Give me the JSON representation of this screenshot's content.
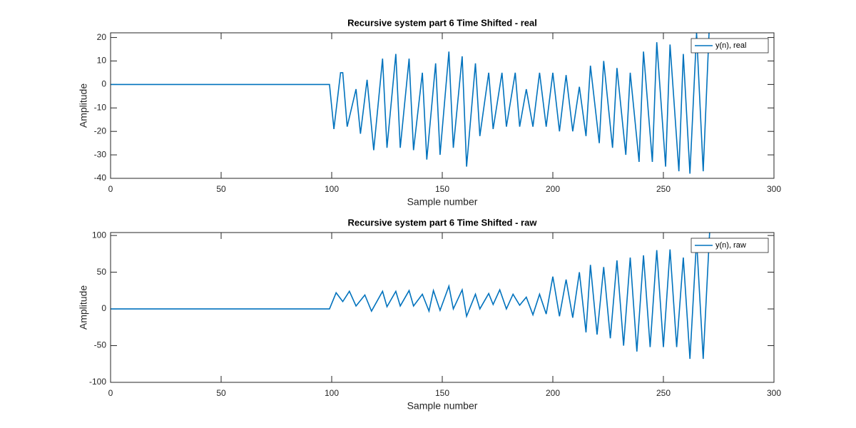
{
  "chart_data": [
    {
      "type": "line",
      "title": "Recursive system part 6 Time Shifted - real",
      "xlabel": "Sample number",
      "ylabel": "Amplitude",
      "x": [
        0,
        99,
        101,
        104,
        105,
        107,
        111,
        113,
        116,
        119,
        123,
        125,
        129,
        131,
        135,
        137,
        141,
        143,
        147,
        149,
        153,
        155,
        159,
        161,
        165,
        167,
        171,
        173,
        177,
        179,
        183,
        185,
        188,
        191,
        194,
        197,
        200,
        203,
        206,
        209,
        212,
        215,
        217,
        221,
        223,
        227,
        229,
        233,
        235,
        239,
        241,
        245,
        247,
        251,
        253,
        257,
        259,
        262,
        265,
        268,
        271
      ],
      "series": [
        {
          "name": "y(n), real",
          "color": "#0072bd",
          "values": [
            0,
            0,
            -19,
            5,
            5,
            -18,
            -2,
            -21,
            2,
            -28,
            11,
            -27,
            13,
            -27,
            11,
            -28,
            5,
            -32,
            9,
            -30,
            14,
            -27,
            12,
            -35,
            9,
            -22,
            5,
            -19,
            5,
            -18,
            5,
            -18,
            -2,
            -18,
            5,
            -18,
            5,
            -20,
            4,
            -20,
            -1,
            -22,
            8,
            -25,
            10,
            -27,
            7,
            -30,
            5,
            -33,
            14,
            -33,
            18,
            -35,
            17,
            -37,
            13,
            -38,
            22,
            -37,
            30
          ]
        }
      ],
      "xlim": [
        0,
        300
      ],
      "ylim": [
        -40,
        22
      ],
      "xticks": [
        0,
        50,
        100,
        150,
        200,
        250,
        300
      ],
      "yticks": [
        -40,
        -30,
        -20,
        -10,
        0,
        10,
        20
      ],
      "legend": "upper right"
    },
    {
      "type": "line",
      "title": "Recursive system part 6 Time Shifted - raw",
      "xlabel": "Sample number",
      "ylabel": "Amplitude",
      "x": [
        0,
        99,
        102,
        105,
        108,
        111,
        115,
        118,
        123,
        125,
        129,
        131,
        135,
        137,
        141,
        144,
        146,
        149,
        153,
        155,
        159,
        161,
        165,
        167,
        171,
        173,
        176,
        179,
        182,
        185,
        188,
        191,
        194,
        197,
        200,
        203,
        206,
        209,
        212,
        215,
        217,
        220,
        223,
        226,
        229,
        232,
        235,
        238,
        241,
        244,
        247,
        250,
        253,
        256,
        259,
        262,
        265,
        268,
        271
      ],
      "series": [
        {
          "name": "y(n), raw",
          "color": "#0072bd",
          "values": [
            0,
            0,
            22,
            10,
            24,
            4,
            19,
            -3,
            24,
            3,
            24,
            4,
            25,
            4,
            20,
            -3,
            25,
            -2,
            31,
            0,
            26,
            -10,
            20,
            0,
            21,
            6,
            26,
            0,
            20,
            5,
            16,
            -8,
            20,
            -7,
            44,
            -10,
            40,
            -12,
            50,
            -32,
            60,
            -35,
            57,
            -40,
            66,
            -50,
            70,
            -58,
            73,
            -52,
            80,
            -52,
            81,
            -52,
            70,
            -68,
            94,
            -68,
            110
          ]
        }
      ],
      "xlim": [
        0,
        300
      ],
      "ylim": [
        -100,
        104
      ],
      "xticks": [
        0,
        50,
        100,
        150,
        200,
        250,
        300
      ],
      "yticks": [
        -100,
        -50,
        0,
        50,
        100
      ],
      "legend": "upper right"
    }
  ]
}
